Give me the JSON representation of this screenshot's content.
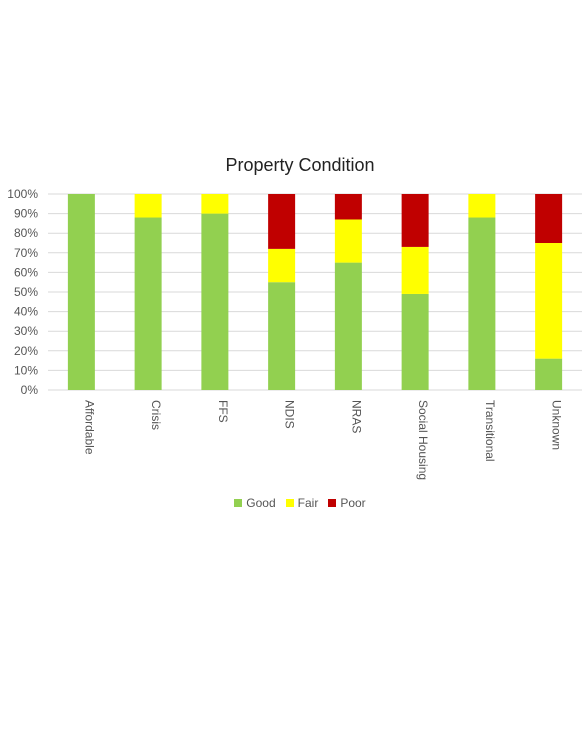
{
  "chart_data": {
    "type": "bar",
    "stacked": true,
    "title": "Property Condition",
    "categories": [
      "Affordable",
      "Crisis",
      "FFS",
      "NDIS",
      "NRAS",
      "Social Housing",
      "Transitional",
      "Unknown"
    ],
    "series": [
      {
        "name": "Good",
        "color": "#92d050",
        "values": [
          100,
          88,
          90,
          55,
          65,
          49,
          88,
          16
        ]
      },
      {
        "name": "Fair",
        "color": "#ffff00",
        "values": [
          0,
          12,
          10,
          17,
          22,
          24,
          12,
          59
        ]
      },
      {
        "name": "Poor",
        "color": "#c00000",
        "values": [
          0,
          0,
          0,
          28,
          13,
          27,
          0,
          25
        ]
      }
    ],
    "ylim": [
      0,
      100
    ],
    "yticks": [
      "0%",
      "10%",
      "20%",
      "30%",
      "40%",
      "50%",
      "60%",
      "70%",
      "80%",
      "90%",
      "100%"
    ],
    "grid": true,
    "legend_position": "bottom"
  }
}
